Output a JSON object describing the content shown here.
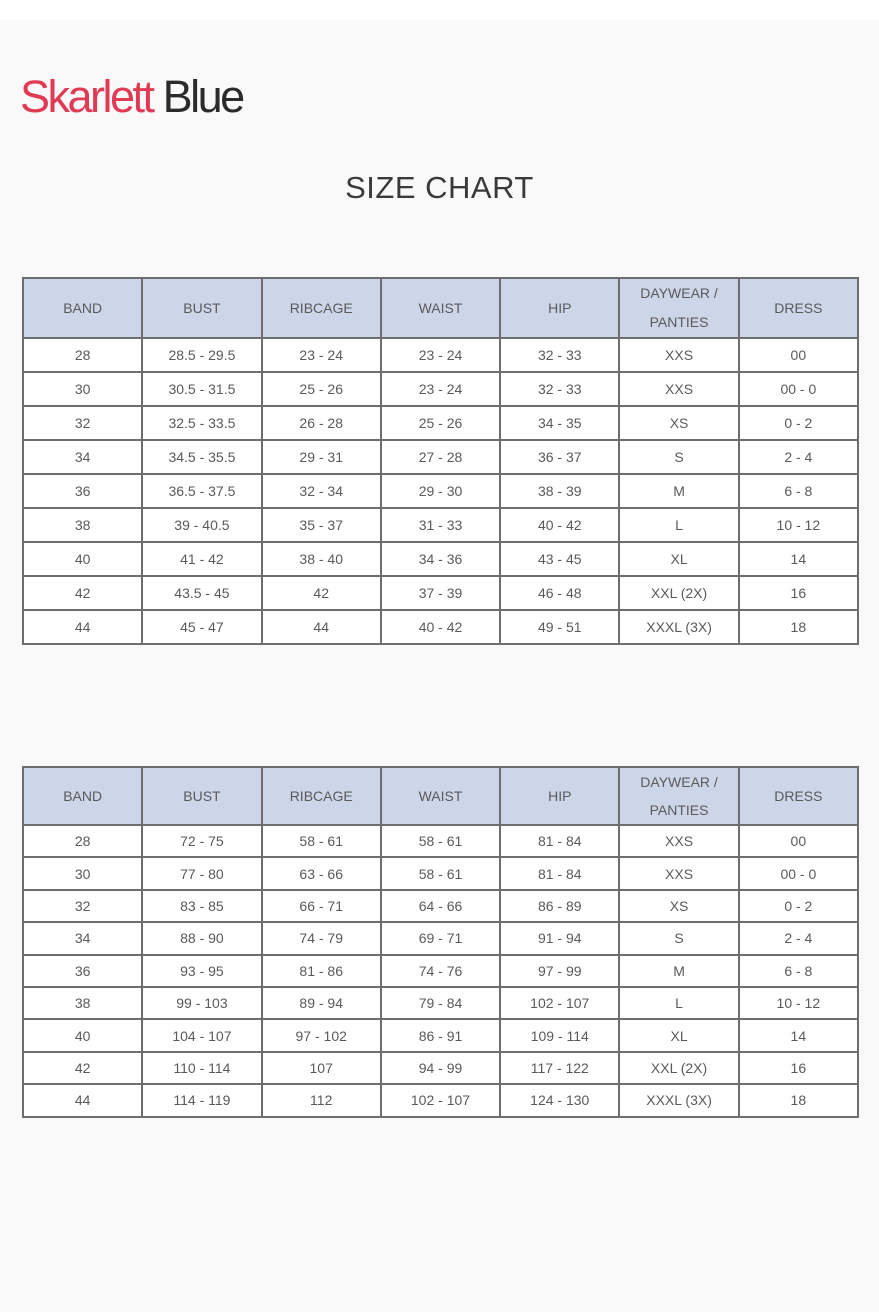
{
  "brand": {
    "part1": "Skarlett",
    "part2": "Blue",
    "color_primary": "#e03a55",
    "color_secondary": "#2b2b2b"
  },
  "title": "SIZE CHART",
  "header_color": "#cdd5e8",
  "tables": [
    {
      "headers": [
        "BAND",
        "BUST",
        "RIBCAGE",
        "WAIST",
        "HIP",
        "DAYWEAR /",
        "PANTIES",
        "DRESS"
      ],
      "rows": [
        [
          "28",
          "28.5 - 29.5",
          "23 - 24",
          "23 - 24",
          "32 - 33",
          "XXS",
          "00"
        ],
        [
          "30",
          "30.5 - 31.5",
          "25 - 26",
          "23 - 24",
          "32 - 33",
          "XXS",
          "00 - 0"
        ],
        [
          "32",
          "32.5 - 33.5",
          "26 - 28",
          "25 - 26",
          "34 - 35",
          "XS",
          "0 - 2"
        ],
        [
          "34",
          "34.5 - 35.5",
          "29 - 31",
          "27 - 28",
          "36 - 37",
          "S",
          "2 - 4"
        ],
        [
          "36",
          "36.5 - 37.5",
          "32 - 34",
          "29 - 30",
          "38 - 39",
          "M",
          "6 - 8"
        ],
        [
          "38",
          "39 - 40.5",
          "35 - 37",
          "31 - 33",
          "40 - 42",
          "L",
          "10 - 12"
        ],
        [
          "40",
          "41 - 42",
          "38 - 40",
          "34 - 36",
          "43 - 45",
          "XL",
          "14"
        ],
        [
          "42",
          "43.5 - 45",
          "42",
          "37 - 39",
          "46 - 48",
          "XXL (2X)",
          "16"
        ],
        [
          "44",
          "45 - 47",
          "44",
          "40 - 42",
          "49 - 51",
          "XXXL (3X)",
          "18"
        ]
      ]
    },
    {
      "headers": [
        "BAND",
        "BUST",
        "RIBCAGE",
        "WAIST",
        "HIP",
        "DAYWEAR /",
        "PANTIES",
        "DRESS"
      ],
      "rows": [
        [
          "28",
          "72 - 75",
          "58 - 61",
          "58 - 61",
          "81 - 84",
          "XXS",
          "00"
        ],
        [
          "30",
          "77 - 80",
          "63 - 66",
          "58 - 61",
          "81 - 84",
          "XXS",
          "00 - 0"
        ],
        [
          "32",
          "83 - 85",
          "66 - 71",
          "64 - 66",
          "86 - 89",
          "XS",
          "0 - 2"
        ],
        [
          "34",
          "88 - 90",
          "74 - 79",
          "69 - 71",
          "91 - 94",
          "S",
          "2 - 4"
        ],
        [
          "36",
          "93 - 95",
          "81 - 86",
          "74 - 76",
          "97 - 99",
          "M",
          "6 - 8"
        ],
        [
          "38",
          "99 - 103",
          "89 - 94",
          "79 - 84",
          "102 - 107",
          "L",
          "10 - 12"
        ],
        [
          "40",
          "104 - 107",
          "97 - 102",
          "86 - 91",
          "109 - 114",
          "XL",
          "14"
        ],
        [
          "42",
          "110 - 114",
          "107",
          "94 - 99",
          "117 - 122",
          "XXL (2X)",
          "16"
        ],
        [
          "44",
          "114 - 119",
          "112",
          "102 - 107",
          "124 - 130",
          "XXXL (3X)",
          "18"
        ]
      ]
    }
  ]
}
